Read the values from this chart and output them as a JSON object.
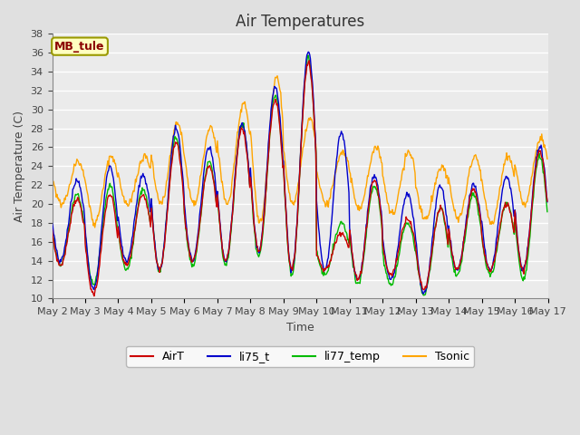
{
  "title": "Air Temperatures",
  "xlabel": "Time",
  "ylabel": "Air Temperature (C)",
  "ylim": [
    10,
    38
  ],
  "yticks": [
    10,
    12,
    14,
    16,
    18,
    20,
    22,
    24,
    26,
    28,
    30,
    32,
    34,
    36,
    38
  ],
  "x_labels": [
    "May 2",
    "May 3",
    "May 4",
    "May 5",
    "May 6",
    "May 7",
    "May 8",
    "May 9",
    "May 10",
    "May 11",
    "May 12",
    "May 13",
    "May 14",
    "May 15",
    "May 16",
    "May 17"
  ],
  "station_label": "MB_tule",
  "station_label_color": "#8B0000",
  "station_box_facecolor": "#FFFFC0",
  "station_box_edgecolor": "#999900",
  "colors": {
    "AirT": "#CC0000",
    "li75_t": "#0000CC",
    "li77_temp": "#00BB00",
    "Tsonic": "#FFA500"
  },
  "line_width": 1.0,
  "background_color": "#E0E0E0",
  "plot_bg_color": "#EBEBEB",
  "grid_color": "#FFFFFF",
  "title_fontsize": 12,
  "axis_fontsize": 9,
  "tick_fontsize": 8,
  "legend_fontsize": 9
}
